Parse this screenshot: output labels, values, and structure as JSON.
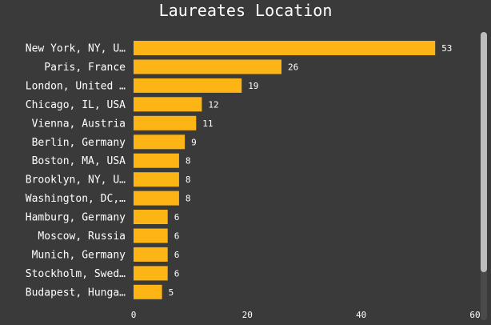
{
  "chart_data": {
    "type": "bar",
    "orientation": "horizontal",
    "title": "Laureates Location",
    "categories": [
      "New York, NY, U…",
      "Paris, France",
      "London, United …",
      "Chicago, IL, USA",
      "Vienna, Austria",
      "Berlin, Germany",
      "Boston, MA, USA",
      "Brooklyn, NY, U…",
      "Washington, DC,…",
      "Hamburg, Germany",
      "Moscow, Russia",
      "Munich, Germany",
      "Stockholm, Swed…",
      "Budapest, Hunga…"
    ],
    "values": [
      53,
      26,
      19,
      12,
      11,
      9,
      8,
      8,
      8,
      6,
      6,
      6,
      6,
      5
    ],
    "xlim": [
      0,
      60
    ],
    "xticks": [
      0,
      20,
      40,
      60
    ],
    "bar_color": "#fdb515",
    "background": "#3a3a3a",
    "grid": false
  }
}
